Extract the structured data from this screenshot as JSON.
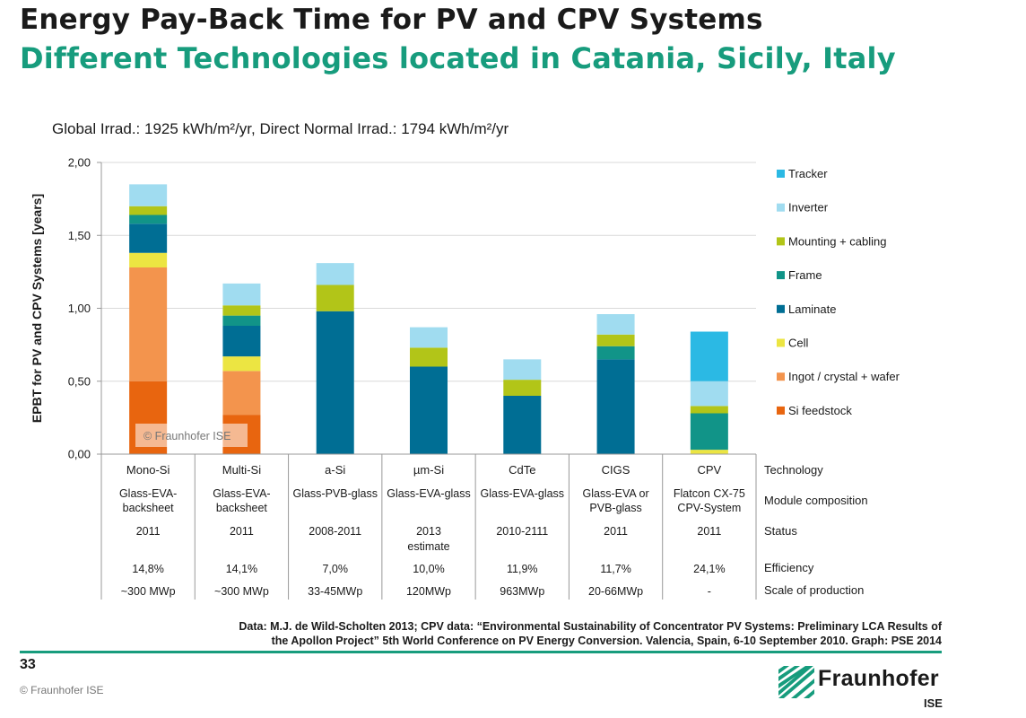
{
  "slide": {
    "title": "Energy Pay-Back Time for PV and CPV Systems",
    "subtitle": "Different Technologies located in Catania, Sicily, Italy",
    "irradiation": "Global Irrad.: 1925 kWh/m²/yr, Direct Normal Irrad.: 1794 kWh/m²/yr",
    "source_line1": "Data: M.J. de Wild-Scholten 2013; CPV data: “Environmental Sustainability of Concentrator PV Systems: Preliminary LCA Results of",
    "source_line2": "the Apollon Project” 5th World Conference on PV Energy Conversion. Valencia, Spain, 6-10 September 2010. Graph: PSE 2014",
    "page_number": "33",
    "copyright": "© Fraunhofer ISE",
    "logo_name": "Fraunhofer",
    "logo_sub": "ISE",
    "colors": {
      "green": "#179c7d"
    }
  },
  "chart_data": {
    "type": "bar",
    "stacked": true,
    "ylabel": "EPBT for PV and CPV Systems [years]",
    "ylim": [
      0,
      2
    ],
    "yticks": [
      "0,00",
      "0,50",
      "1,00",
      "1,50",
      "2,00"
    ],
    "watermark": "© Fraunhofer ISE",
    "legend_position": "right",
    "categories": [
      "Mono-Si",
      "Multi-Si",
      "a-Si",
      "µm-Si",
      "CdTe",
      "CIGS",
      "CPV"
    ],
    "series": [
      {
        "name": "Si feedstock",
        "color": "#e8650f",
        "values": [
          0.5,
          0.27,
          0,
          0,
          0,
          0,
          0
        ]
      },
      {
        "name": "Ingot / crystal + wafer",
        "color": "#f3944d",
        "values": [
          0.78,
          0.3,
          0,
          0,
          0,
          0,
          0
        ]
      },
      {
        "name": "Cell",
        "color": "#ece542",
        "values": [
          0.1,
          0.1,
          0,
          0,
          0,
          0,
          0.03
        ]
      },
      {
        "name": "Laminate",
        "color": "#006e94",
        "values": [
          0.2,
          0.21,
          0.98,
          0.6,
          0.4,
          0.65,
          0
        ]
      },
      {
        "name": "Frame",
        "color": "#119488",
        "values": [
          0.06,
          0.07,
          0,
          0,
          0,
          0.09,
          0.25
        ]
      },
      {
        "name": "Mounting + cabling",
        "color": "#b2c518",
        "values": [
          0.06,
          0.07,
          0.18,
          0.13,
          0.11,
          0.08,
          0.05
        ]
      },
      {
        "name": "Inverter",
        "color": "#a0dcf0",
        "values": [
          0.15,
          0.15,
          0.15,
          0.14,
          0.14,
          0.14,
          0.17
        ]
      },
      {
        "name": "Tracker",
        "color": "#2bb9e4",
        "values": [
          0,
          0,
          0,
          0,
          0,
          0,
          0.34
        ]
      }
    ],
    "table": {
      "row_labels": [
        "Technology",
        "Module composition",
        "Status",
        "Efficiency",
        "Scale of production"
      ],
      "module_composition": [
        [
          "Glass-EVA-",
          "backsheet"
        ],
        [
          "Glass-EVA-",
          "backsheet"
        ],
        [
          "Glass-PVB-glass"
        ],
        [
          "Glass-EVA-glass"
        ],
        [
          "Glass-EVA-glass"
        ],
        [
          "Glass-EVA or",
          "PVB-glass"
        ],
        [
          "Flatcon CX-75",
          "CPV-System"
        ]
      ],
      "status": [
        [
          "2011"
        ],
        [
          "2011"
        ],
        [
          "2008-2011"
        ],
        [
          "2013",
          "estimate"
        ],
        [
          "2010-2111"
        ],
        [
          "2011"
        ],
        [
          "2011"
        ]
      ],
      "efficiency": [
        "14,8%",
        "14,1%",
        "7,0%",
        "10,0%",
        "11,9%",
        "11,7%",
        "24,1%"
      ],
      "scale": [
        "~300 MWp",
        "~300 MWp",
        "33-45MWp",
        "120MWp",
        "963MWp",
        "20-66MWp",
        "-"
      ]
    }
  }
}
